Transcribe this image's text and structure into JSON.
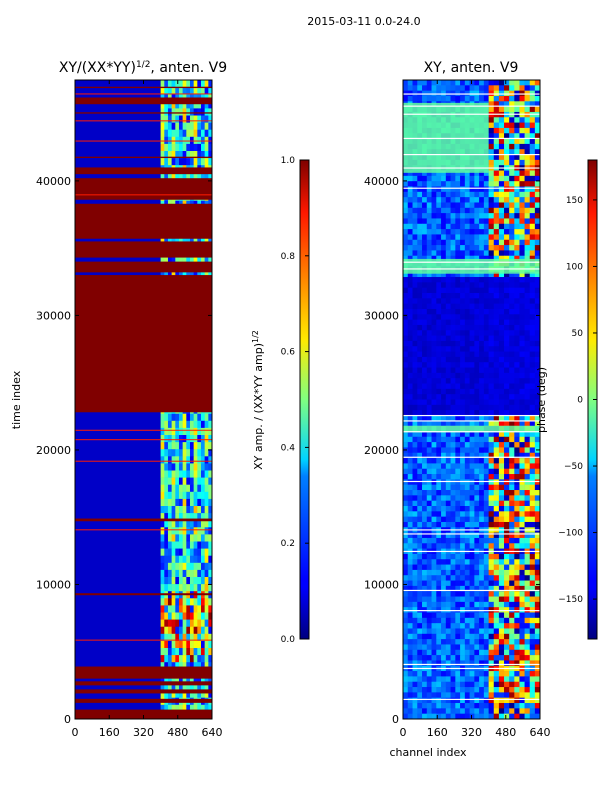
{
  "figure_title": "2015-03-11 0.0-24.0",
  "chart_data": [
    {
      "type": "heatmap",
      "title": "XY/(XX*YY)^{1/2}, anten. V9",
      "title_main": "XY/(XX*YY)",
      "title_sup": "1/2",
      "title_tail": ", anten. V9",
      "xlabel": "",
      "ylabel": "time index",
      "xlim": [
        0,
        640
      ],
      "ylim": [
        0,
        47500
      ],
      "xticks": [
        0,
        160,
        320,
        480,
        640
      ],
      "yticks": [
        0,
        10000,
        20000,
        30000,
        40000
      ],
      "colormap": "jet",
      "colorbar": {
        "label_main": "XY amp. / (XX*YY amp)",
        "label_sup": "1/2",
        "range": [
          0.0,
          1.0
        ],
        "ticks": [
          0.0,
          0.2,
          0.4,
          0.6,
          0.8,
          1.0
        ],
        "tick_labels": [
          "0.0",
          "0.2",
          "0.4",
          "0.6",
          "0.8",
          "1.0"
        ]
      },
      "saturated_time_bands": [
        [
          0,
          700
        ],
        [
          1200,
          1500
        ],
        [
          1900,
          2200
        ],
        [
          2500,
          2800
        ],
        [
          3000,
          3900
        ],
        [
          9200,
          9350
        ],
        [
          14700,
          14900
        ],
        [
          22800,
          33000
        ],
        [
          33200,
          34000
        ],
        [
          34300,
          35500
        ],
        [
          35700,
          38300
        ],
        [
          38600,
          40200
        ],
        [
          40500,
          41000
        ],
        [
          41700,
          41800
        ],
        [
          45000,
          45100
        ],
        [
          45700,
          46200
        ],
        [
          46900,
          47000
        ]
      ],
      "active_channel_range": [
        400,
        640
      ]
    },
    {
      "type": "heatmap",
      "title": "XY, anten. V9",
      "xlabel": "channel index",
      "ylabel": "",
      "xlim": [
        0,
        640
      ],
      "ylim": [
        0,
        47500
      ],
      "xticks": [
        0,
        160,
        320,
        480,
        640
      ],
      "yticks": [
        0,
        10000,
        20000,
        30000,
        40000
      ],
      "colormap": "jet",
      "colorbar": {
        "label": "phase (deg)",
        "range": [
          -180,
          180
        ],
        "ticks": [
          -150,
          -100,
          -50,
          0,
          50,
          100,
          150
        ],
        "tick_labels": [
          "−150",
          "−100",
          "−50",
          "0",
          "50",
          "100",
          "150"
        ]
      },
      "cyan_phase_time_bands": [
        [
          40600,
          45800
        ],
        [
          33100,
          34200
        ],
        [
          21300,
          21800
        ]
      ],
      "active_channel_range": [
        400,
        640
      ]
    }
  ]
}
